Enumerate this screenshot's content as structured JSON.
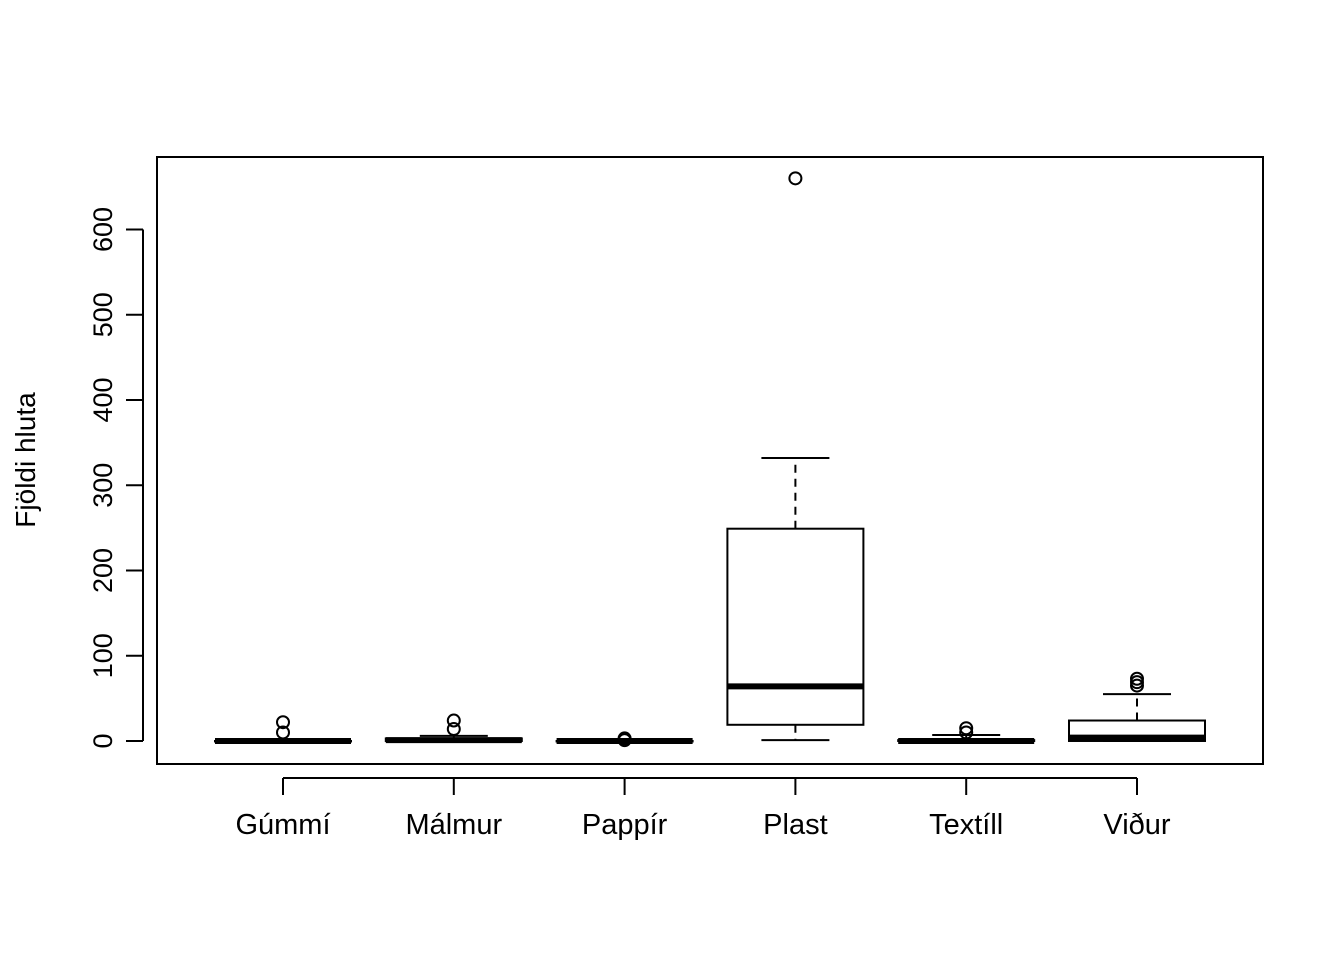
{
  "chart_data": {
    "type": "boxplot",
    "title": "",
    "xlabel": "",
    "ylabel": "Fjöldi hluta",
    "ylim": [
      -27,
      685
    ],
    "yticks": [
      0,
      100,
      200,
      300,
      400,
      500,
      600
    ],
    "grid": false,
    "legend": "none",
    "categories": [
      "Gúmmí",
      "Málmur",
      "Pappír",
      "Plast",
      "Textíll",
      "Viður"
    ],
    "boxes": [
      {
        "min": 0,
        "q1": 0,
        "median": 0,
        "q3": 0,
        "max": 0,
        "outliers": [
          10,
          22
        ]
      },
      {
        "min": 0,
        "q1": 0,
        "median": 1,
        "q3": 3,
        "max": 6,
        "outliers": [
          14,
          24
        ]
      },
      {
        "min": 0,
        "q1": 0,
        "median": 0,
        "q3": 0,
        "max": 0,
        "outliers": [
          1,
          3
        ]
      },
      {
        "min": 1,
        "q1": 19,
        "median": 64,
        "q3": 249,
        "max": 332,
        "outliers": [
          660
        ]
      },
      {
        "min": 0,
        "q1": 0,
        "median": 0,
        "q3": 1,
        "max": 7,
        "outliers": [
          10,
          15
        ]
      },
      {
        "min": 0,
        "q1": 0,
        "median": 4,
        "q3": 24,
        "max": 55,
        "outliers": [
          65,
          69,
          73
        ]
      }
    ],
    "colors": {
      "stroke": "#000000",
      "background": "#ffffff"
    }
  }
}
